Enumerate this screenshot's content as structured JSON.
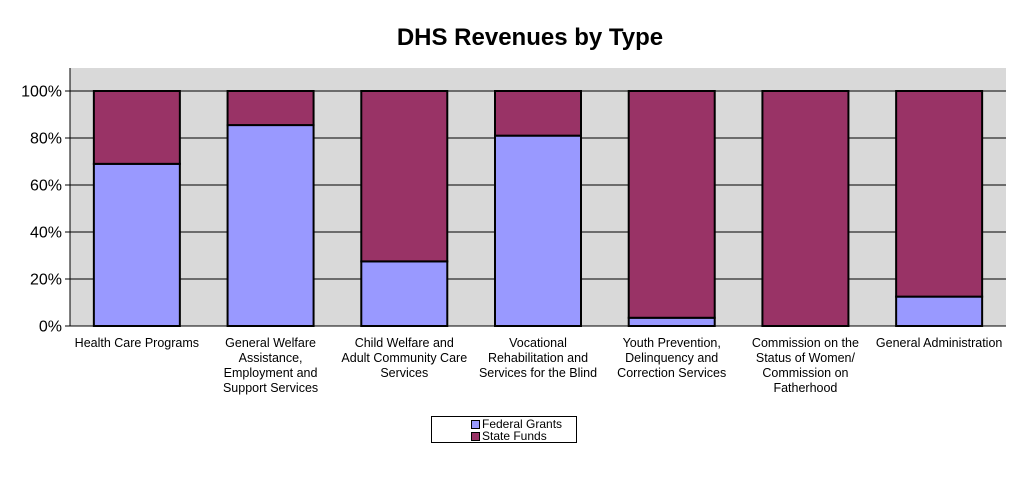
{
  "chart_data": {
    "type": "bar",
    "stacked": true,
    "title": "DHS Revenues by Type",
    "xlabel": "",
    "ylabel": "",
    "ylim": [
      0,
      100
    ],
    "yticks": [
      "0%",
      "20%",
      "40%",
      "60%",
      "80%",
      "100%"
    ],
    "grid": true,
    "legend_position": "bottom",
    "categories": [
      [
        "Health Care Programs"
      ],
      [
        "General Welfare",
        "Assistance,",
        "Employment and",
        "Support Services"
      ],
      [
        "Child Welfare and",
        "Adult Community Care",
        "Services"
      ],
      [
        "Vocational",
        "Rehabilitation and",
        "Services for the Blind"
      ],
      [
        "Youth Prevention,",
        "Delinquency and",
        "Correction Services"
      ],
      [
        "Commission on the",
        "Status of Women/",
        "Commission on",
        "Fatherhood"
      ],
      [
        "General Administration"
      ]
    ],
    "series": [
      {
        "name": "Federal Grants",
        "color": "#9999ff",
        "values": [
          69,
          85.5,
          27.5,
          81,
          3.5,
          0,
          12.5
        ]
      },
      {
        "name": "State Funds",
        "color": "#993366",
        "values": [
          31,
          14.5,
          72.5,
          19,
          96.5,
          100,
          87.5
        ]
      }
    ]
  }
}
